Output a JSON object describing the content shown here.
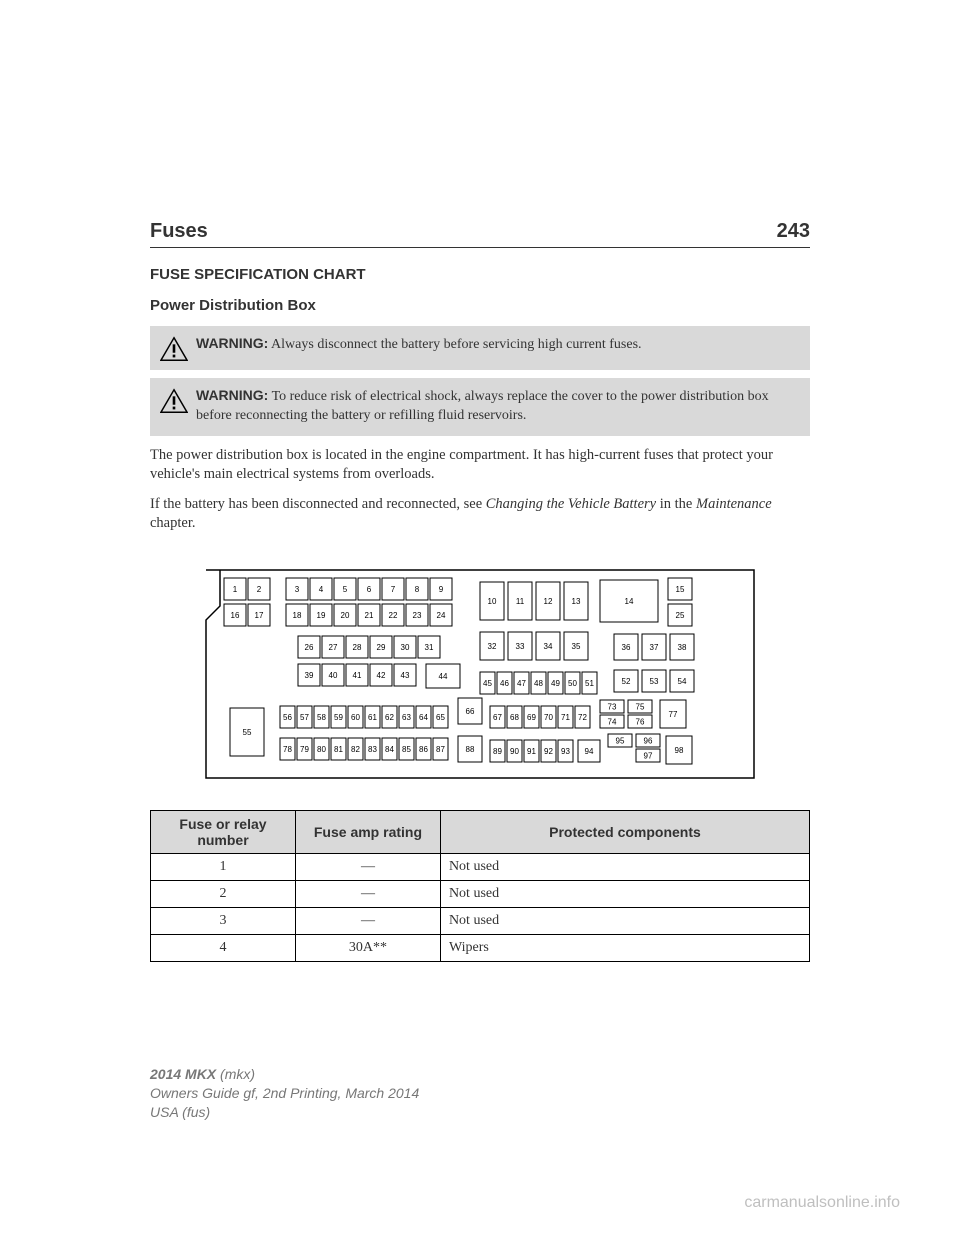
{
  "header": {
    "title": "Fuses",
    "page": "243"
  },
  "section_title": "FUSE SPECIFICATION CHART",
  "subsection_title": "Power Distribution Box",
  "warnings": [
    {
      "lead": "WARNING:",
      "text": " Always disconnect the battery before servicing high current fuses."
    },
    {
      "lead": "WARNING:",
      "text": " To reduce risk of electrical shock, always replace the cover to the power distribution box before reconnecting the battery or refilling fluid reservoirs."
    }
  ],
  "paragraphs": {
    "p1": "The power distribution box is located in the engine compartment. It has high-current fuses that protect your vehicle's main electrical systems from overloads.",
    "p2_a": "If the battery has been disconnected and reconnected, see ",
    "p2_i1": "Changing the Vehicle Battery",
    "p2_b": " in the ",
    "p2_i2": "Maintenance",
    "p2_c": " chapter."
  },
  "diagram": {
    "stroke": "#000000",
    "fill": "#ffffff",
    "font_family": "Arial, Helvetica, sans-serif",
    "font_size": 8,
    "cells": {
      "row1a": [
        "1",
        "2"
      ],
      "row1b": [
        "3",
        "4",
        "5",
        "6",
        "7",
        "8",
        "9"
      ],
      "row2a": [
        "16",
        "17"
      ],
      "row2b": [
        "18",
        "19",
        "20",
        "21",
        "22",
        "23",
        "24"
      ],
      "row3": [
        "26",
        "27",
        "28",
        "29",
        "30",
        "31"
      ],
      "row4": [
        "39",
        "40",
        "41",
        "42",
        "43"
      ],
      "row_right_top": [
        "10",
        "11",
        "12",
        "13"
      ],
      "cell14": "14",
      "cell15": "15",
      "cell25": "25",
      "row_mid_r": [
        "32",
        "33",
        "34",
        "35"
      ],
      "row_36_38": [
        "36",
        "37",
        "38"
      ],
      "cell44": "44",
      "row45_51": [
        "45",
        "46",
        "47",
        "48",
        "49",
        "50",
        "51"
      ],
      "row52_54": [
        "52",
        "53",
        "54"
      ],
      "cell55": "55",
      "row56_65": [
        "56",
        "57",
        "58",
        "59",
        "60",
        "61",
        "62",
        "63",
        "64",
        "65"
      ],
      "cell66": "66",
      "row67_72": [
        "67",
        "68",
        "69",
        "70",
        "71",
        "72"
      ],
      "col73_76": [
        "73",
        "74",
        "75",
        "76"
      ],
      "cell77": "77",
      "row78_87": [
        "78",
        "79",
        "80",
        "81",
        "82",
        "83",
        "84",
        "85",
        "86",
        "87"
      ],
      "cell88": "88",
      "row89_93": [
        "89",
        "90",
        "91",
        "92",
        "93"
      ],
      "cell94": "94",
      "col95_97": [
        "95",
        "96",
        "97"
      ],
      "cell98": "98"
    }
  },
  "table": {
    "columns": [
      "Fuse or relay number",
      "Fuse amp rating",
      "Protected components"
    ],
    "rows": [
      [
        "1",
        "—",
        "Not used"
      ],
      [
        "2",
        "—",
        "Not used"
      ],
      [
        "3",
        "—",
        "Not used"
      ],
      [
        "4",
        "30A**",
        "Wipers"
      ]
    ]
  },
  "footer": {
    "line1_bold": "2014 MKX",
    "line1_rest": " (mkx)",
    "line2": "Owners Guide gf, 2nd Printing, March 2014",
    "line3": "USA (fus)"
  },
  "watermark": "carmanualsonline.info"
}
